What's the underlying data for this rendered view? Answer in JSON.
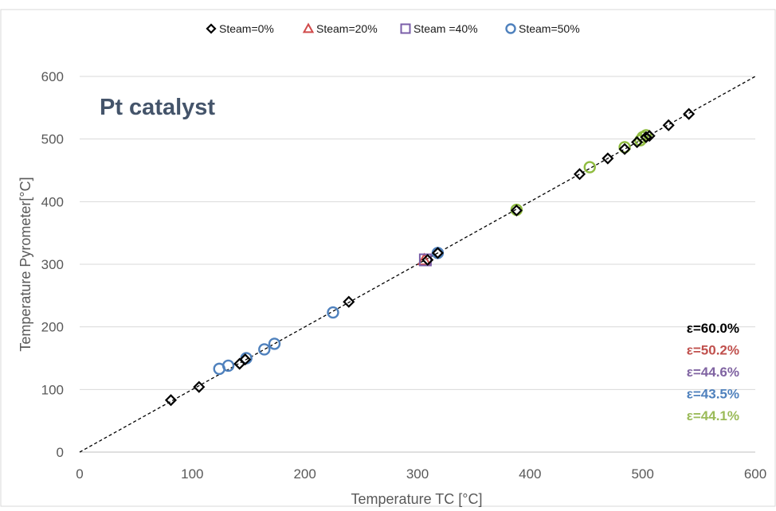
{
  "chart_data": {
    "type": "scatter",
    "xlabel": "Temperature TC [°C]",
    "ylabel": "Temperature Pyrometer[°C]",
    "xlim": [
      0,
      600
    ],
    "ylim": [
      0,
      600
    ],
    "x_ticks": [
      0,
      100,
      200,
      300,
      400,
      500,
      600
    ],
    "y_ticks": [
      0,
      100,
      200,
      300,
      400,
      500,
      600
    ],
    "grid": "horizontal",
    "legend_position": "top",
    "reference_line": {
      "style": "dashed",
      "color": "#000000",
      "from": [
        0,
        0
      ],
      "to": [
        600,
        600
      ]
    },
    "annotation": "Pt catalyst",
    "series": [
      {
        "name": "Steam=0%",
        "marker": "diamond",
        "color": "#000000",
        "x": [
          81,
          106,
          142,
          147,
          239,
          309,
          318,
          388,
          444,
          469,
          484,
          495,
          503,
          506,
          523,
          541
        ],
        "y": [
          83,
          104,
          141,
          148,
          240,
          307,
          318,
          386,
          444,
          469,
          484,
          495,
          503,
          505,
          522,
          540
        ]
      },
      {
        "name": "Steam=20%",
        "marker": "triangle",
        "color": "#d04a4a",
        "x": [
          306
        ],
        "y": [
          307
        ]
      },
      {
        "name": "Steam =40%",
        "marker": "square",
        "color": "#7a5ea8",
        "x": [
          307
        ],
        "y": [
          307
        ]
      },
      {
        "name": "Steam=50%",
        "marker": "circle",
        "color": "#4f81bd",
        "x": [
          124,
          132,
          148,
          164,
          173,
          225,
          318
        ],
        "y": [
          133,
          138,
          150,
          164,
          173,
          223,
          318
        ]
      },
      {
        "name": "",
        "marker": "circle",
        "color": "#8fbc3f",
        "x": [
          388,
          453,
          484,
          498,
          500,
          503
        ],
        "y": [
          387,
          455,
          487,
          498,
          503,
          506
        ]
      }
    ],
    "emissivity_labels": [
      {
        "text": "ε=60.0%",
        "color": "#000000"
      },
      {
        "text": "ε=50.2%",
        "color": "#c0504d"
      },
      {
        "text": "ε=44.6%",
        "color": "#8064a2"
      },
      {
        "text": "ε=43.5%",
        "color": "#4f81bd"
      },
      {
        "text": "ε=44.1%",
        "color": "#9bbb59"
      }
    ]
  }
}
